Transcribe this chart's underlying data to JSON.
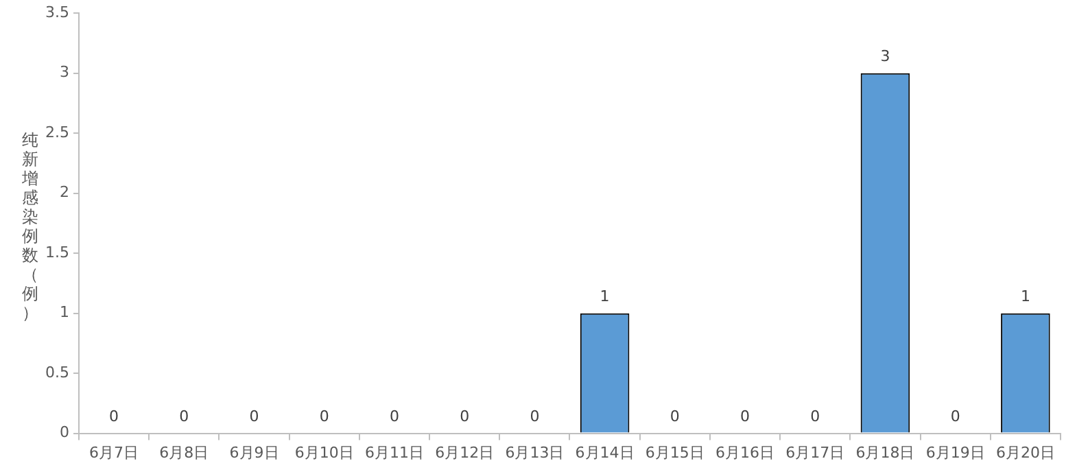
{
  "chart_data": {
    "type": "bar",
    "ylabel": "纯新增感染例数（例）",
    "categories": [
      "6月7日",
      "6月8日",
      "6月9日",
      "6月10日",
      "6月11日",
      "6月12日",
      "6月13日",
      "6月14日",
      "6月15日",
      "6月16日",
      "6月17日",
      "6月18日",
      "6月19日",
      "6月20日"
    ],
    "values": [
      0,
      0,
      0,
      0,
      0,
      0,
      0,
      1,
      0,
      0,
      0,
      3,
      0,
      1
    ],
    "color": "#5b9bd5",
    "ylim": [
      0,
      3.5
    ],
    "yticks": [
      0,
      0.5,
      1,
      1.5,
      2,
      2.5,
      3,
      3.5
    ],
    "grid": false,
    "legend": false,
    "data_labels": true
  }
}
